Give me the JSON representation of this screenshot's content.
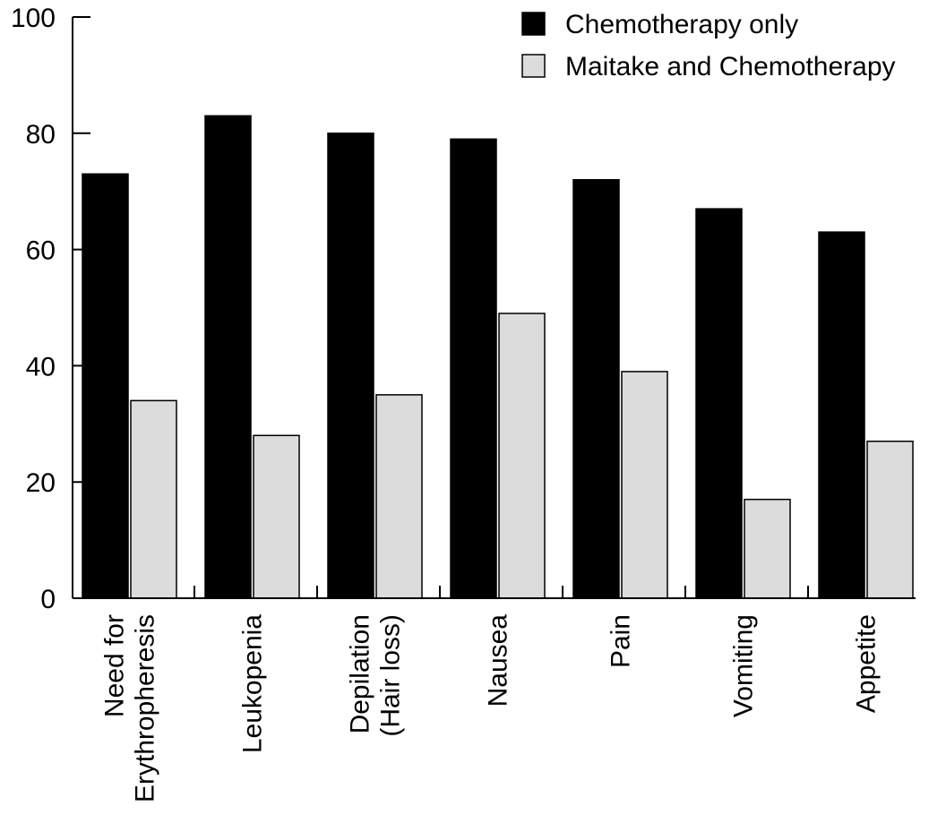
{
  "chart_data": {
    "type": "bar",
    "title": "",
    "xlabel": "",
    "ylabel": "",
    "ylim": [
      0,
      100
    ],
    "yticks": [
      0,
      20,
      40,
      60,
      80,
      100
    ],
    "grid": false,
    "legend_position": "top-right",
    "categories": [
      [
        "Need for",
        "Erythropheresis"
      ],
      [
        "Leukopenia"
      ],
      [
        "Depilation",
        "(Hair loss)"
      ],
      [
        "Nausea"
      ],
      [
        "Pain"
      ],
      [
        "Vomiting"
      ],
      [
        "Appetite"
      ]
    ],
    "series": [
      {
        "name": "Chemotherapy only",
        "color": "#000000",
        "values": [
          73,
          83,
          80,
          79,
          72,
          67,
          63
        ]
      },
      {
        "name": "Maitake and Chemotherapy",
        "color": "#dcdcdc",
        "values": [
          34,
          28,
          35,
          49,
          39,
          17,
          27
        ]
      }
    ]
  }
}
